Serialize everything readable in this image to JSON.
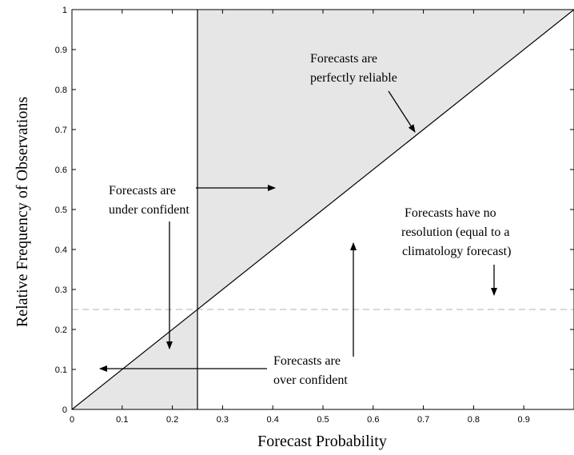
{
  "chart_data": {
    "type": "line",
    "title": "",
    "xlabel": "Forecast Probability",
    "ylabel": "Relative Frequency of Observations",
    "xlim": [
      0,
      1
    ],
    "ylim": [
      0,
      1
    ],
    "x_ticks": [
      "0",
      "0.1",
      "0.2",
      "0.3",
      "0.4",
      "0.5",
      "0.6",
      "0.7",
      "0.8",
      "0.9"
    ],
    "y_ticks": [
      "0",
      "0.1",
      "0.2",
      "0.3",
      "0.4",
      "0.5",
      "0.6",
      "0.7",
      "0.8",
      "0.9",
      "1"
    ],
    "grid": false,
    "climatology": 0.25,
    "diagonal": {
      "x": [
        0,
        1
      ],
      "y": [
        0,
        1
      ]
    },
    "shaded_regions": [
      {
        "x": [
          0.25,
          0.25,
          1
        ],
        "y": [
          0.25,
          1,
          1
        ],
        "color": "#e6e6e6"
      },
      {
        "x": [
          0,
          0.25,
          0.25
        ],
        "y": [
          0,
          0.25,
          0
        ],
        "color": "#e6e6e6"
      }
    ],
    "annotations": [
      {
        "lines": [
          "Forecasts are",
          "perfectly reliable"
        ]
      },
      {
        "lines": [
          "Forecasts are",
          "under confident"
        ]
      },
      {
        "lines": [
          "Forecasts have no",
          "resolution (equal to a",
          "climatology forecast)"
        ]
      },
      {
        "lines": [
          "Forecasts are",
          "over confident"
        ]
      }
    ]
  }
}
